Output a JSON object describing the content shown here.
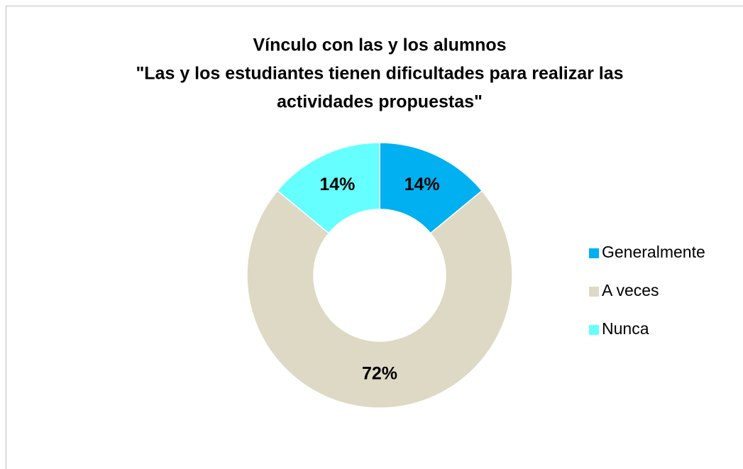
{
  "chart_data": {
    "type": "donut",
    "title": [
      "Vínculo con las y los alumnos",
      "\"Las y los estudiantes tienen dificultades para realizar las",
      "actividades propuestas\""
    ],
    "categories": [
      "Generalmente",
      "A veces",
      "Nunca"
    ],
    "values": [
      14,
      72,
      14
    ],
    "value_labels": [
      "14%",
      "72%",
      "14%"
    ],
    "colors": [
      "#00b0f0",
      "#ddd9c4",
      "#66ffff"
    ],
    "legend": "right"
  }
}
